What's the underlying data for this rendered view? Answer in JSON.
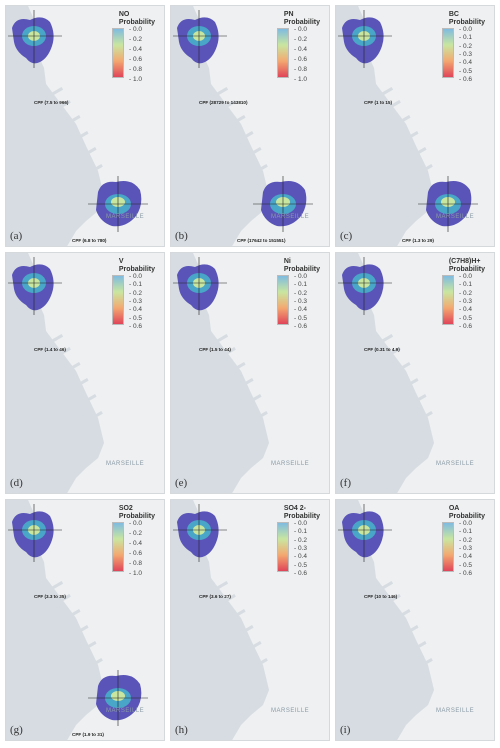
{
  "legend_heading": "Probability",
  "city_label": "MARSEILLE",
  "scales": {
    "s10": [
      "0.0",
      "0.2",
      "0.4",
      "0.6",
      "0.8",
      "1.0"
    ],
    "s06": [
      "0.0",
      "0.1",
      "0.2",
      "0.3",
      "0.4",
      "0.5",
      "0.6"
    ]
  },
  "colors": {
    "scale_top": "#7fbbe0",
    "scale_mid": "#c9e6a0",
    "scale_low": "#f3a870",
    "scale_bottom": "#e0455a",
    "plume": "#5a54b8",
    "water": "#d6dce1",
    "land": "#eef0f1"
  },
  "panels": [
    {
      "label": "(a)",
      "species": "NO",
      "scale": "s10",
      "cpf_top": "CPF (7.5 to 966)",
      "cpf_bottom": "CPF (6.8 to 780)",
      "has_bottom": true
    },
    {
      "label": "(b)",
      "species": "PN",
      "scale": "s10",
      "cpf_top": "CPF (28729 to 143810)",
      "cpf_bottom": "CPF (17642 to 151551)",
      "has_bottom": true
    },
    {
      "label": "(c)",
      "species": "BC",
      "scale": "s06",
      "cpf_top": "CPF (1 to 15)",
      "cpf_bottom": "CPF (1.3 to 29)",
      "has_bottom": true
    },
    {
      "label": "(d)",
      "species": "V",
      "scale": "s06",
      "cpf_top": "CPF (1.4 to 46)",
      "cpf_bottom": "",
      "has_bottom": false
    },
    {
      "label": "(e)",
      "species": "Ni",
      "scale": "s06",
      "cpf_top": "CPF (1.5 to 44)",
      "cpf_bottom": "",
      "has_bottom": false
    },
    {
      "label": "(f)",
      "species": "(C7H8)H+",
      "scale": "s06",
      "cpf_top": "CPF (0.31 to 4.9)",
      "cpf_bottom": "",
      "has_bottom": false
    },
    {
      "label": "(g)",
      "species": "SO2",
      "scale": "s10",
      "cpf_top": "CPF (3.3 to 35)",
      "cpf_bottom": "CPF (1.9 to 31)",
      "has_bottom": true
    },
    {
      "label": "(h)",
      "species": "SO4 2-",
      "scale": "s06",
      "cpf_top": "CPF (3.6 to 27)",
      "cpf_bottom": "",
      "has_bottom": false
    },
    {
      "label": "(i)",
      "species": "OA",
      "scale": "s06",
      "cpf_top": "CPF (10 to 146)",
      "cpf_bottom": "",
      "has_bottom": false
    }
  ]
}
